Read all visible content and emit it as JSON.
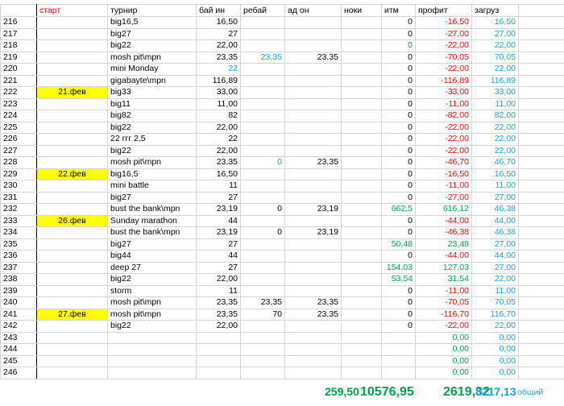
{
  "table": {
    "header": [
      null,
      "старт",
      "турнир",
      "бай ин",
      "ребай",
      "ад он",
      "ноки",
      "итм",
      "профит",
      "загруз",
      null
    ],
    "rows": [
      [
        "216",
        null,
        "big16,5",
        "16,50",
        null,
        null,
        null,
        "0",
        "-16,50",
        "16,50"
      ],
      [
        "217",
        null,
        "big27",
        "27",
        null,
        null,
        null,
        "0",
        "-27,00",
        "27,00"
      ],
      [
        "218",
        null,
        "big22",
        "22,00",
        null,
        null,
        null,
        "0",
        "-22,00",
        "22,00"
      ],
      [
        "219",
        null,
        "mosh pit\\mpn",
        "23,35",
        "23,35",
        "23,35",
        null,
        "0",
        "-70,05",
        "70,05"
      ],
      [
        "220",
        null,
        "mini Monday",
        "22",
        null,
        null,
        null,
        "0",
        "-22,00",
        "22,00"
      ],
      [
        "221",
        null,
        "gigabayte\\mpn",
        "116,89",
        null,
        null,
        null,
        "0",
        "-116,89",
        "116,89"
      ],
      [
        "222",
        "21.фев",
        "big33",
        "33,00",
        null,
        null,
        null,
        "0",
        "-33,00",
        "33,00"
      ],
      [
        "223",
        null,
        "big11",
        "11,00",
        null,
        null,
        null,
        "0",
        "-11,00",
        "11,00"
      ],
      [
        "224",
        null,
        "big82",
        "82",
        null,
        null,
        null,
        "0",
        "-82,00",
        "82,00"
      ],
      [
        "225",
        null,
        "big22",
        "22,00",
        null,
        null,
        null,
        "0",
        "-22,00",
        "22,00"
      ],
      [
        "226",
        null,
        "22 ггг 2,5",
        "22",
        null,
        null,
        null,
        "0",
        "-22,00",
        "22,00"
      ],
      [
        "227",
        null,
        "big22",
        "22,00",
        null,
        null,
        null,
        "0",
        "-22,00",
        "22,00"
      ],
      [
        "228",
        null,
        "mosh pit\\mpn",
        "23,35",
        "0",
        "23,35",
        null,
        "0",
        "-46,70",
        "46,70"
      ],
      [
        "229",
        "22.фев",
        "big16,5",
        "16,50",
        null,
        null,
        null,
        "0",
        "-16,50",
        "16,50"
      ],
      [
        "230",
        null,
        "mini battle",
        "11",
        null,
        null,
        null,
        "0",
        "-11,00",
        "11,00"
      ],
      [
        "231",
        null,
        "big27",
        "27",
        null,
        null,
        null,
        "0",
        "-27,00",
        "27,00"
      ],
      [
        "232",
        null,
        "bust the bank\\mpn",
        "23,19",
        "0",
        "23,19",
        null,
        "662,5",
        "616,12",
        "46,38"
      ],
      [
        "233",
        "26.фев",
        "Sunday marathon",
        "44",
        null,
        null,
        null,
        "0",
        "-44,00",
        "44,00"
      ],
      [
        "234",
        null,
        "bust the bank\\mpn",
        "23,19",
        "0",
        "23,19",
        null,
        "0",
        "-46,38",
        "46,38"
      ],
      [
        "235",
        null,
        "big27",
        "27",
        null,
        null,
        null,
        "50,48",
        "23,48",
        "27,00"
      ],
      [
        "236",
        null,
        "big44",
        "44",
        null,
        null,
        null,
        "0",
        "-44,00",
        "44,00"
      ],
      [
        "237",
        null,
        "deep 27",
        "27",
        null,
        null,
        null,
        "154,03",
        "127,03",
        "27,00"
      ],
      [
        "238",
        null,
        "big22",
        "22,00",
        null,
        null,
        null,
        "53,54",
        "31,54",
        "22,00"
      ],
      [
        "239",
        null,
        "storm",
        "11",
        null,
        null,
        null,
        "0",
        "-11,00",
        "11,00"
      ],
      [
        "240",
        null,
        "mosh pit\\mpn",
        "23,35",
        "23,35",
        "23,35",
        null,
        "0",
        "-70,05",
        "70,05"
      ],
      [
        "241",
        "27.фев",
        "mosh pit\\mpn",
        "23,35",
        "70",
        "23,35",
        null,
        "0",
        "-116,70",
        "116,70"
      ],
      [
        "242",
        null,
        "big22",
        "22,00",
        null,
        null,
        null,
        "0",
        "-22,00",
        "22,00"
      ],
      [
        "243",
        null,
        null,
        null,
        null,
        null,
        null,
        null,
        "0,00",
        "0,00"
      ],
      [
        "244",
        null,
        null,
        null,
        null,
        null,
        null,
        null,
        "0,00",
        "0,00"
      ],
      [
        "245",
        null,
        null,
        null,
        null,
        null,
        null,
        null,
        "0,00",
        "0,00"
      ],
      [
        "246",
        null,
        null,
        null,
        null,
        null,
        null,
        null,
        "0,00",
        "0,00"
      ]
    ],
    "totals": [
      "259,50",
      "10576,95",
      "2619,32",
      "8217,13",
      "общий"
    ]
  }
}
